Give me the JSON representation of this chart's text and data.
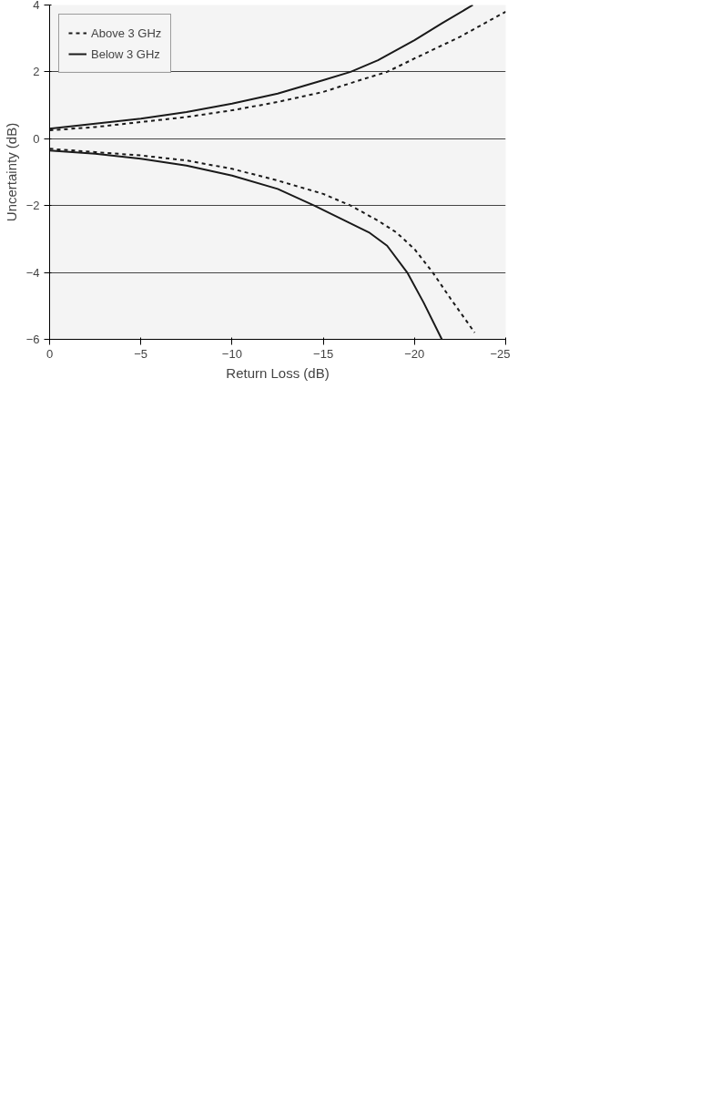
{
  "chart_data": {
    "type": "line",
    "xlabel": "Return Loss (dB)",
    "ylabel": "Uncertainty (dB)",
    "xlim": [
      0,
      -25
    ],
    "xticks": [
      0,
      {
        "value": -5,
        "label": "−5"
      },
      {
        "value": -10,
        "label": "−10"
      },
      {
        "value": -15,
        "label": "−15"
      },
      {
        "value": -20,
        "label": "−20"
      },
      {
        "value": -25,
        "label": "−25"
      }
    ],
    "ylim": [
      -6,
      4
    ],
    "yticks": [
      {
        "value": -6,
        "label": "−6"
      },
      {
        "value": -4,
        "label": "−4"
      },
      {
        "value": -2,
        "label": "−2"
      },
      0,
      2,
      4
    ],
    "grid": "y",
    "legend": "top left",
    "marker": "none",
    "series": [
      {
        "name": "Above 3 GHz",
        "color": "#1a1a1a",
        "line_style": "dashed",
        "x": [
          0,
          -2.5,
          -5,
          -7.5,
          -10,
          -12.5,
          -15,
          -17,
          -18.5,
          -20,
          -22.5,
          -25
        ],
        "values": [
          0.25,
          0.35,
          0.5,
          0.65,
          0.85,
          1.1,
          1.4,
          1.75,
          2.0,
          2.4,
          3.05,
          3.8
        ]
      },
      {
        "name": "Below 3 GHz",
        "color": "#1a1a1a",
        "line_style": "solid",
        "x": [
          0,
          -2.5,
          -5,
          -7.5,
          -10,
          -12.5,
          -15,
          -16.5,
          -18,
          -20,
          -21.5,
          -23.2
        ],
        "values": [
          0.3,
          0.45,
          0.6,
          0.8,
          1.05,
          1.35,
          1.75,
          2.0,
          2.35,
          2.95,
          3.45,
          4.0
        ]
      },
      {
        "color": "#1a1a1a",
        "line_style": "dashed",
        "x": [
          0,
          -2.5,
          -5,
          -7.5,
          -10,
          -12.5,
          -15,
          -16.5,
          -18,
          -19,
          -20,
          -21,
          -22,
          -23.3
        ],
        "values": [
          -0.3,
          -0.4,
          -0.5,
          -0.65,
          -0.9,
          -1.25,
          -1.65,
          -2.0,
          -2.45,
          -2.8,
          -3.3,
          -4.0,
          -4.8,
          -5.8
        ]
      },
      {
        "color": "#1a1a1a",
        "line_style": "solid",
        "x": [
          0,
          -2.5,
          -5,
          -7.5,
          -10,
          -12.5,
          -14.5,
          -16,
          -17.5,
          -18.5,
          -19.6,
          -20.5,
          -21.5
        ],
        "values": [
          -0.35,
          -0.45,
          -0.6,
          -0.8,
          -1.1,
          -1.5,
          -2.0,
          -2.4,
          -2.8,
          -3.2,
          -4.0,
          -4.9,
          -6.0
        ]
      }
    ]
  }
}
